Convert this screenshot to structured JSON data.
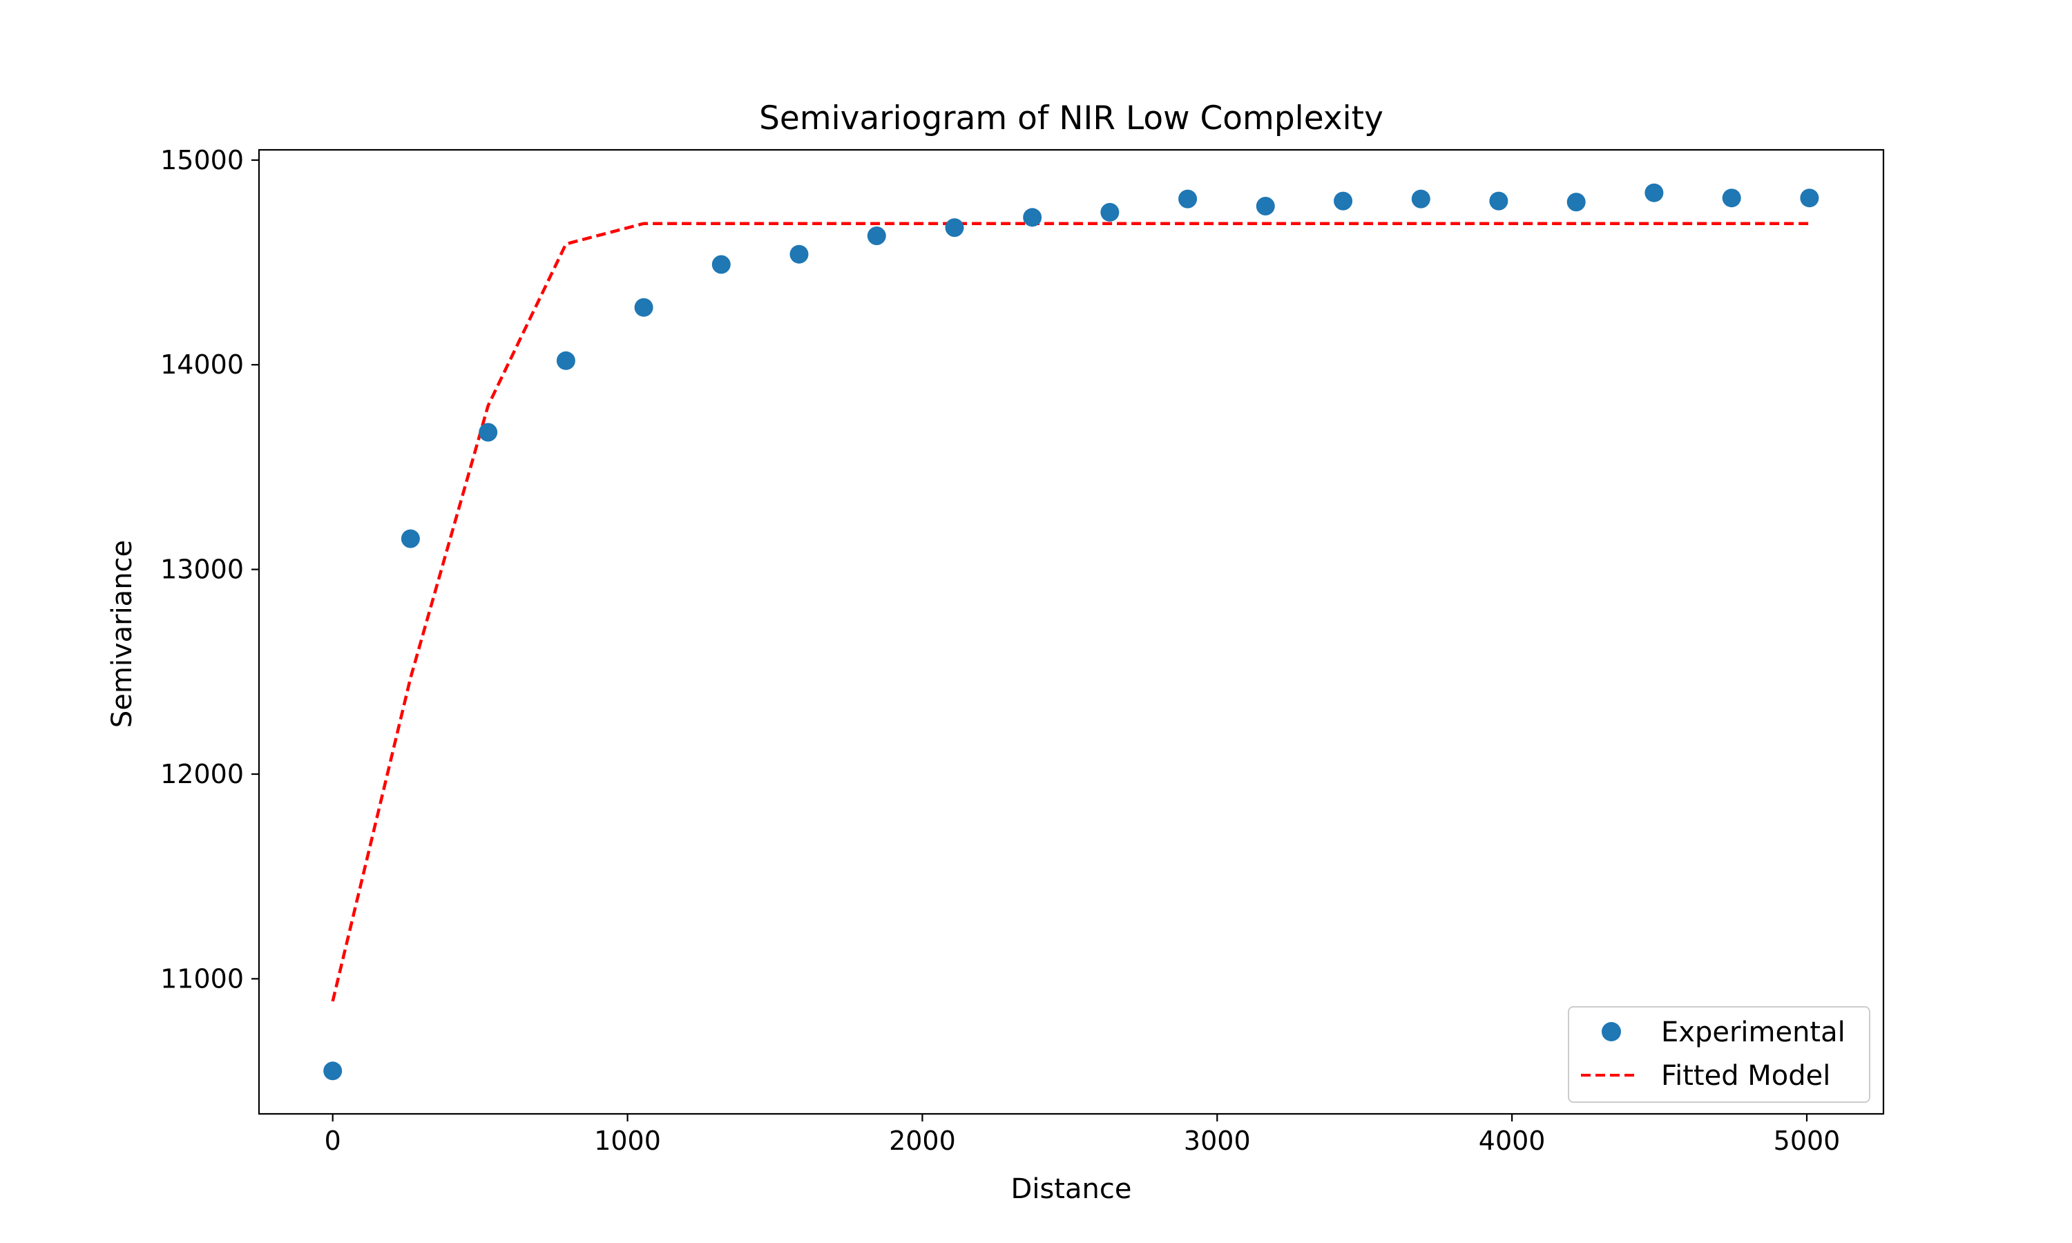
{
  "chart_data": {
    "type": "scatter",
    "title": "Semivariogram of NIR Low Complexity",
    "xlabel": "Distance",
    "ylabel": "Semivariance",
    "xlim": [
      -250,
      5260
    ],
    "ylim": [
      10340,
      15050
    ],
    "xticks": [
      0,
      1000,
      2000,
      3000,
      4000,
      5000
    ],
    "yticks": [
      11000,
      12000,
      13000,
      14000,
      15000
    ],
    "grid": false,
    "legend_position": "bottom-right",
    "series": [
      {
        "name": "Experimental",
        "kind": "scatter",
        "color": "#1f77b4",
        "x": [
          0,
          264,
          527,
          791,
          1055,
          1318,
          1582,
          1845,
          2109,
          2373,
          2636,
          2900,
          3164,
          3427,
          3691,
          3955,
          4218,
          4482,
          4745,
          5009
        ],
        "y": [
          10550,
          13150,
          13670,
          14020,
          14280,
          14490,
          14540,
          14630,
          14670,
          14720,
          14745,
          14810,
          14775,
          14800,
          14810,
          14800,
          14795,
          14840,
          14815,
          14815
        ]
      },
      {
        "name": "Fitted Model",
        "kind": "line",
        "style": "dashed",
        "color": "#ff0000",
        "x": [
          0,
          264,
          527,
          791,
          1055,
          1318,
          1582,
          1845,
          2109,
          2373,
          2636,
          2900,
          3164,
          3427,
          3691,
          3955,
          4218,
          4482,
          4745,
          5009
        ],
        "y": [
          10890,
          12470,
          13800,
          14590,
          14690,
          14690,
          14690,
          14690,
          14690,
          14690,
          14690,
          14690,
          14690,
          14690,
          14690,
          14690,
          14690,
          14690,
          14690,
          14690
        ]
      }
    ]
  }
}
